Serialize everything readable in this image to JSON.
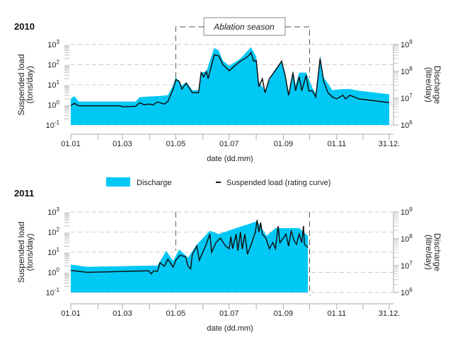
{
  "chart_data": {
    "type": "area",
    "legend": {
      "placement": "between-panels",
      "items": [
        "Discharge",
        "Suspended load (rating curve)"
      ]
    },
    "colors": {
      "discharge": "#00c8f5",
      "load": "#111111",
      "grid": "#cccccc"
    },
    "x_ticks": [
      "01.01",
      "01.03",
      "01.05",
      "01.07",
      "01.09",
      "01.11",
      "31.12."
    ],
    "x_tick_doy": [
      1,
      60,
      121,
      182,
      244,
      305,
      365
    ],
    "month_tick_doy": [
      1,
      32,
      60,
      91,
      121,
      152,
      182,
      213,
      244,
      274,
      305,
      335,
      365
    ],
    "xlabel": "date (dd.mm)",
    "ylabel_left": [
      "Suspended load",
      "(tons/day)"
    ],
    "ylabel_right": [
      "Discharge",
      "(litre/day)"
    ],
    "ylim_left": [
      0.1,
      1000
    ],
    "ylim_right": [
      1000000,
      1000000000
    ],
    "yticks_left": [
      {
        "base": "10",
        "exp": "3"
      },
      {
        "base": "10",
        "exp": "2"
      },
      {
        "base": "10",
        "exp": "1"
      },
      {
        "base": "10",
        "exp": "0"
      },
      {
        "base": "10",
        "exp": "-1"
      }
    ],
    "yticks_right": [
      {
        "base": "10",
        "exp": "9"
      },
      {
        "base": "10",
        "exp": "8"
      },
      {
        "base": "10",
        "exp": "7"
      },
      {
        "base": "10",
        "exp": "6"
      }
    ],
    "annotation": "Ablation season",
    "ablation_doy": [
      121,
      274
    ],
    "panels": [
      {
        "title": "2010",
        "load": [
          [
            1,
            0.9
          ],
          [
            5,
            1.2
          ],
          [
            10,
            0.9
          ],
          [
            58,
            0.9
          ],
          [
            60,
            0.8
          ],
          [
            75,
            0.85
          ],
          [
            80,
            1.3
          ],
          [
            85,
            1.0
          ],
          [
            90,
            1.1
          ],
          [
            95,
            1.0
          ],
          [
            100,
            1.4
          ],
          [
            108,
            1.1
          ],
          [
            112,
            1.5
          ],
          [
            118,
            6
          ],
          [
            121,
            18
          ],
          [
            125,
            15
          ],
          [
            128,
            6
          ],
          [
            133,
            12
          ],
          [
            140,
            4
          ],
          [
            147,
            4
          ],
          [
            150,
            40
          ],
          [
            153,
            25
          ],
          [
            156,
            45
          ],
          [
            158,
            20
          ],
          [
            165,
            300
          ],
          [
            170,
            280
          ],
          [
            175,
            100
          ],
          [
            182,
            50
          ],
          [
            190,
            100
          ],
          [
            195,
            150
          ],
          [
            200,
            200
          ],
          [
            205,
            300
          ],
          [
            207,
            400
          ],
          [
            210,
            150
          ],
          [
            213,
            160
          ],
          [
            216,
            8
          ],
          [
            220,
            20
          ],
          [
            223,
            4
          ],
          [
            228,
            20
          ],
          [
            233,
            40
          ],
          [
            238,
            80
          ],
          [
            242,
            150
          ],
          [
            246,
            30
          ],
          [
            250,
            3
          ],
          [
            255,
            40
          ],
          [
            258,
            5
          ],
          [
            262,
            25
          ],
          [
            265,
            5
          ],
          [
            270,
            30
          ],
          [
            273,
            5
          ],
          [
            277,
            5
          ],
          [
            281,
            2.5
          ],
          [
            286,
            200
          ],
          [
            290,
            15
          ],
          [
            295,
            4
          ],
          [
            300,
            2.5
          ],
          [
            305,
            2
          ],
          [
            312,
            3
          ],
          [
            315,
            2
          ],
          [
            320,
            3
          ],
          [
            325,
            2.5
          ],
          [
            330,
            2
          ],
          [
            365,
            1.3
          ]
        ],
        "discharge": [
          [
            1,
            9500000.0
          ],
          [
            5,
            12000000.0
          ],
          [
            10,
            7500000.0
          ],
          [
            58,
            7500000.0
          ],
          [
            75,
            7500000.0
          ],
          [
            80,
            11000000.0
          ],
          [
            100,
            12000000.0
          ],
          [
            112,
            13000000.0
          ],
          [
            118,
            30000000.0
          ],
          [
            121,
            60000000.0
          ],
          [
            128,
            30000000.0
          ],
          [
            133,
            40000000.0
          ],
          [
            140,
            20000000.0
          ],
          [
            147,
            20000000.0
          ],
          [
            150,
            90000000.0
          ],
          [
            156,
            100000000.0
          ],
          [
            165,
            750000000.0
          ],
          [
            170,
            600000000.0
          ],
          [
            175,
            250000000.0
          ],
          [
            182,
            160000000.0
          ],
          [
            195,
            300000000.0
          ],
          [
            207,
            800000000.0
          ],
          [
            213,
            350000000.0
          ],
          [
            216,
            40000000.0
          ],
          [
            223,
            20000000.0
          ],
          [
            233,
            100000000.0
          ],
          [
            242,
            250000000.0
          ],
          [
            250,
            15000000.0
          ],
          [
            255,
            110000000.0
          ],
          [
            258,
            30000000.0
          ],
          [
            262,
            90000000.0
          ],
          [
            270,
            90000000.0
          ],
          [
            277,
            25000000.0
          ],
          [
            281,
            15000000.0
          ],
          [
            286,
            400000000.0
          ],
          [
            290,
            60000000.0
          ],
          [
            300,
            20000000.0
          ],
          [
            312,
            22000000.0
          ],
          [
            320,
            22000000.0
          ],
          [
            330,
            19000000.0
          ],
          [
            365,
            14000000.0
          ]
        ]
      },
      {
        "title": "2011",
        "load": [
          [
            1,
            1.25
          ],
          [
            20,
            1.0
          ],
          [
            60,
            1.1
          ],
          [
            90,
            1.2
          ],
          [
            93,
            0.85
          ],
          [
            96,
            1.2
          ],
          [
            100,
            1.1
          ],
          [
            103,
            3
          ],
          [
            108,
            2
          ],
          [
            112,
            4.5
          ],
          [
            118,
            1.8
          ],
          [
            121,
            4
          ],
          [
            126,
            7
          ],
          [
            132,
            6
          ],
          [
            135,
            2
          ],
          [
            138,
            1.5
          ],
          [
            140,
            8
          ],
          [
            145,
            20
          ],
          [
            148,
            4
          ],
          [
            155,
            20
          ],
          [
            160,
            80
          ],
          [
            162,
            10
          ],
          [
            167,
            30
          ],
          [
            172,
            50
          ],
          [
            178,
            20
          ],
          [
            182,
            15
          ],
          [
            184,
            60
          ],
          [
            186,
            15
          ],
          [
            190,
            80
          ],
          [
            192,
            12
          ],
          [
            195,
            100
          ],
          [
            197,
            14
          ],
          [
            200,
            80
          ],
          [
            203,
            8
          ],
          [
            208,
            30
          ],
          [
            212,
            100
          ],
          [
            214,
            400
          ],
          [
            216,
            100
          ],
          [
            218,
            300
          ],
          [
            220,
            80
          ],
          [
            224,
            50
          ],
          [
            228,
            15
          ],
          [
            232,
            30
          ],
          [
            235,
            15
          ],
          [
            238,
            200
          ],
          [
            240,
            30
          ],
          [
            244,
            50
          ],
          [
            247,
            80
          ],
          [
            250,
            20
          ],
          [
            253,
            120
          ],
          [
            256,
            40
          ],
          [
            259,
            25
          ],
          [
            262,
            80
          ],
          [
            265,
            30
          ],
          [
            267,
            200
          ],
          [
            268,
            25
          ],
          [
            272,
            17
          ]
        ],
        "discharge": [
          [
            1,
            11000000.0
          ],
          [
            20,
            9000000.0
          ],
          [
            90,
            10000000.0
          ],
          [
            100,
            10000000.0
          ],
          [
            110,
            35000000.0
          ],
          [
            118,
            15000000.0
          ],
          [
            125,
            40000000.0
          ],
          [
            135,
            20000000.0
          ],
          [
            145,
            60000000.0
          ],
          [
            160,
            200000000.0
          ],
          [
            170,
            150000000.0
          ],
          [
            190,
            250000000.0
          ],
          [
            214,
            450000000.0
          ],
          [
            225,
            130000000.0
          ],
          [
            235,
            250000000.0
          ],
          [
            250,
            250000000.0
          ],
          [
            262,
            250000000.0
          ],
          [
            272,
            130000000.0
          ]
        ]
      }
    ]
  }
}
